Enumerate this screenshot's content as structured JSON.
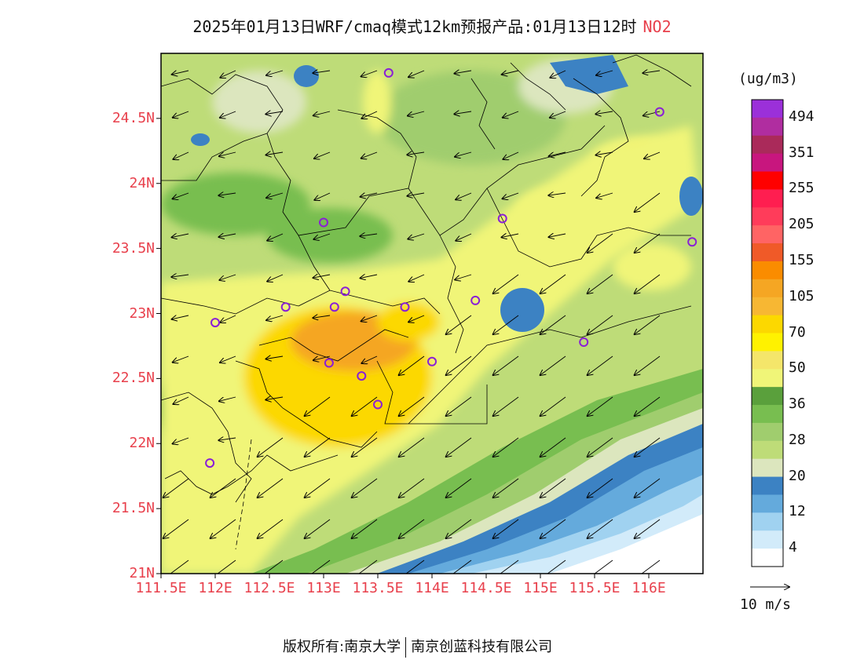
{
  "title": {
    "text": "2025年01月13日WRF/cmaq模式12km预报产品:01月13日12时",
    "pollutant": "NO2"
  },
  "axes": {
    "lat_labels": [
      "24.5N",
      "24N",
      "23.5N",
      "23N",
      "22.5N",
      "22N",
      "21.5N",
      "21N"
    ],
    "lon_labels": [
      "111.5E",
      "112E",
      "112.5E",
      "113E",
      "113.5E",
      "114E",
      "114.5E",
      "115E",
      "115.5E",
      "116E"
    ],
    "lat_range": [
      21.0,
      25.0
    ],
    "lon_range": [
      111.5,
      116.5
    ]
  },
  "colorbar": {
    "unit": "(ug/m3)",
    "labels": [
      "494",
      "351",
      "255",
      "205",
      "155",
      "105",
      "70",
      "50",
      "36",
      "28",
      "20",
      "12",
      "4"
    ],
    "colors": [
      "#9b30d9",
      "#b02da0",
      "#aa2a5a",
      "#c8167e",
      "#ff0000",
      "#ff1e50",
      "#ff3c5a",
      "#ff6464",
      "#f05a28",
      "#fa8c00",
      "#f5a623",
      "#f7b733",
      "#fcd800",
      "#fff200",
      "#f4e66a",
      "#f0f578",
      "#5aa03c",
      "#78be50",
      "#a0cd6e",
      "#bedc78",
      "#dce6be",
      "#3c82c3",
      "#64aadc",
      "#a0d2f0",
      "#d2ebfa",
      "#ffffff"
    ]
  },
  "wind_reference": {
    "label": "10 m/s"
  },
  "stations": [
    [
      113.6,
      24.85
    ],
    [
      116.1,
      24.55
    ],
    [
      113.0,
      23.7
    ],
    [
      114.65,
      23.73
    ],
    [
      116.4,
      23.55
    ],
    [
      113.2,
      23.17
    ],
    [
      113.1,
      23.05
    ],
    [
      112.65,
      23.05
    ],
    [
      112.0,
      22.93
    ],
    [
      113.75,
      23.05
    ],
    [
      114.4,
      23.1
    ],
    [
      115.4,
      22.78
    ],
    [
      113.05,
      22.62
    ],
    [
      113.35,
      22.52
    ],
    [
      114.0,
      22.63
    ],
    [
      113.5,
      22.3
    ],
    [
      111.95,
      21.85
    ]
  ],
  "copyright": {
    "prefix": "版权所有:",
    "owner1": "南京大学",
    "owner2": "南京创蓝科技有限公司"
  }
}
